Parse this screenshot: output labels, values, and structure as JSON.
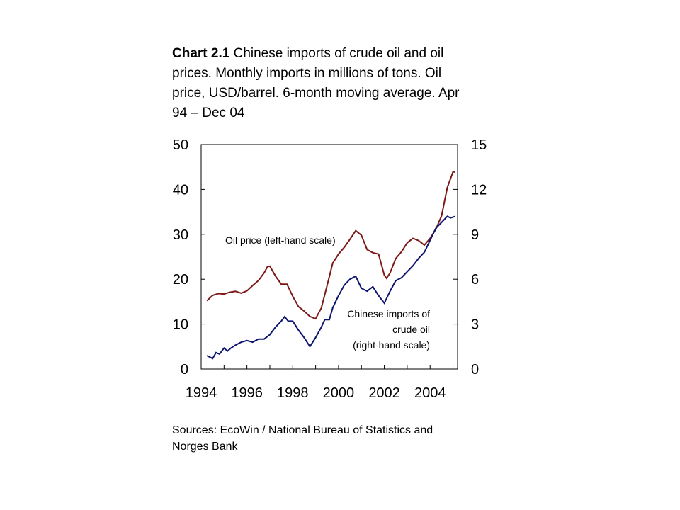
{
  "title": {
    "number": "Chart 2.1",
    "text": "Chinese imports of crude oil and oil prices. Monthly imports in millions of tons. Oil price, USD/barrel. 6-month moving average. Apr 94 – Dec 04"
  },
  "sources": "Sources: EcoWin / National Bureau of Statistics and Norges Bank",
  "colors": {
    "oil_price": "#7a1717",
    "imports": "#0d1470"
  },
  "chart_data": {
    "type": "line",
    "grid": false,
    "x_ticks": [
      "1994",
      "1996",
      "1998",
      "2000",
      "2002",
      "2004"
    ],
    "x_range": [
      1994,
      2005.2
    ],
    "y_left": {
      "range": [
        0,
        50
      ],
      "ticks": [
        "0",
        "10",
        "20",
        "30",
        "40",
        "50"
      ]
    },
    "y_right": {
      "range": [
        0,
        15
      ],
      "ticks": [
        "0",
        "3",
        "6",
        "9",
        "12",
        "15"
      ]
    },
    "annotations": {
      "oil": "Oil price (left-hand scale)",
      "imports_1": "Chinese imports of",
      "imports_2": "crude oil",
      "imports_3": "(right-hand scale)"
    },
    "series": [
      {
        "axis": "left",
        "color": "#7a1717",
        "points": [
          [
            1994.25,
            15.2
          ],
          [
            1994.5,
            16.4
          ],
          [
            1994.75,
            16.8
          ],
          [
            1995.0,
            16.7
          ],
          [
            1995.25,
            17.1
          ],
          [
            1995.5,
            17.3
          ],
          [
            1995.75,
            16.9
          ],
          [
            1996.0,
            17.4
          ],
          [
            1996.25,
            18.6
          ],
          [
            1996.5,
            19.7
          ],
          [
            1996.75,
            21.4
          ],
          [
            1996.9,
            22.8
          ],
          [
            1997.0,
            22.9
          ],
          [
            1997.25,
            20.7
          ],
          [
            1997.5,
            18.9
          ],
          [
            1997.75,
            18.9
          ],
          [
            1998.0,
            16.2
          ],
          [
            1998.25,
            13.9
          ],
          [
            1998.5,
            12.9
          ],
          [
            1998.75,
            11.7
          ],
          [
            1999.0,
            11.2
          ],
          [
            1999.25,
            13.6
          ],
          [
            1999.5,
            18.6
          ],
          [
            1999.75,
            23.6
          ],
          [
            2000.0,
            25.6
          ],
          [
            2000.25,
            27.1
          ],
          [
            2000.5,
            28.9
          ],
          [
            2000.75,
            30.8
          ],
          [
            2001.0,
            29.8
          ],
          [
            2001.25,
            26.6
          ],
          [
            2001.5,
            25.9
          ],
          [
            2001.75,
            25.6
          ],
          [
            2002.0,
            20.9
          ],
          [
            2002.1,
            20.2
          ],
          [
            2002.25,
            21.4
          ],
          [
            2002.5,
            24.6
          ],
          [
            2002.75,
            26.1
          ],
          [
            2003.0,
            28.1
          ],
          [
            2003.25,
            29.1
          ],
          [
            2003.5,
            28.6
          ],
          [
            2003.75,
            27.6
          ],
          [
            2004.0,
            29.1
          ],
          [
            2004.25,
            31.1
          ],
          [
            2004.5,
            34.1
          ],
          [
            2004.75,
            40.4
          ],
          [
            2005.0,
            43.9
          ],
          [
            2005.1,
            43.9
          ]
        ]
      },
      {
        "axis": "right",
        "color": "#0d1470",
        "points": [
          [
            1994.25,
            0.9
          ],
          [
            1994.5,
            0.7
          ],
          [
            1994.65,
            1.1
          ],
          [
            1994.8,
            1.0
          ],
          [
            1995.0,
            1.4
          ],
          [
            1995.15,
            1.2
          ],
          [
            1995.3,
            1.4
          ],
          [
            1995.5,
            1.6
          ],
          [
            1995.75,
            1.8
          ],
          [
            1996.0,
            1.9
          ],
          [
            1996.25,
            1.8
          ],
          [
            1996.5,
            2.0
          ],
          [
            1996.75,
            2.0
          ],
          [
            1997.0,
            2.3
          ],
          [
            1997.25,
            2.8
          ],
          [
            1997.5,
            3.2
          ],
          [
            1997.65,
            3.5
          ],
          [
            1997.8,
            3.2
          ],
          [
            1998.0,
            3.2
          ],
          [
            1998.25,
            2.6
          ],
          [
            1998.5,
            2.1
          ],
          [
            1998.75,
            1.5
          ],
          [
            1999.0,
            2.1
          ],
          [
            1999.25,
            2.8
          ],
          [
            1999.4,
            3.3
          ],
          [
            1999.6,
            3.3
          ],
          [
            1999.75,
            4.1
          ],
          [
            2000.0,
            4.9
          ],
          [
            2000.25,
            5.6
          ],
          [
            2000.5,
            6.0
          ],
          [
            2000.75,
            6.2
          ],
          [
            2001.0,
            5.4
          ],
          [
            2001.25,
            5.2
          ],
          [
            2001.5,
            5.5
          ],
          [
            2001.75,
            4.9
          ],
          [
            2002.0,
            4.4
          ],
          [
            2002.25,
            5.2
          ],
          [
            2002.5,
            5.9
          ],
          [
            2002.75,
            6.1
          ],
          [
            2003.0,
            6.5
          ],
          [
            2003.25,
            6.9
          ],
          [
            2003.5,
            7.4
          ],
          [
            2003.75,
            7.8
          ],
          [
            2004.0,
            8.6
          ],
          [
            2004.25,
            9.4
          ],
          [
            2004.5,
            9.8
          ],
          [
            2004.75,
            10.2
          ],
          [
            2004.9,
            10.1
          ],
          [
            2005.1,
            10.2
          ]
        ]
      }
    ]
  }
}
